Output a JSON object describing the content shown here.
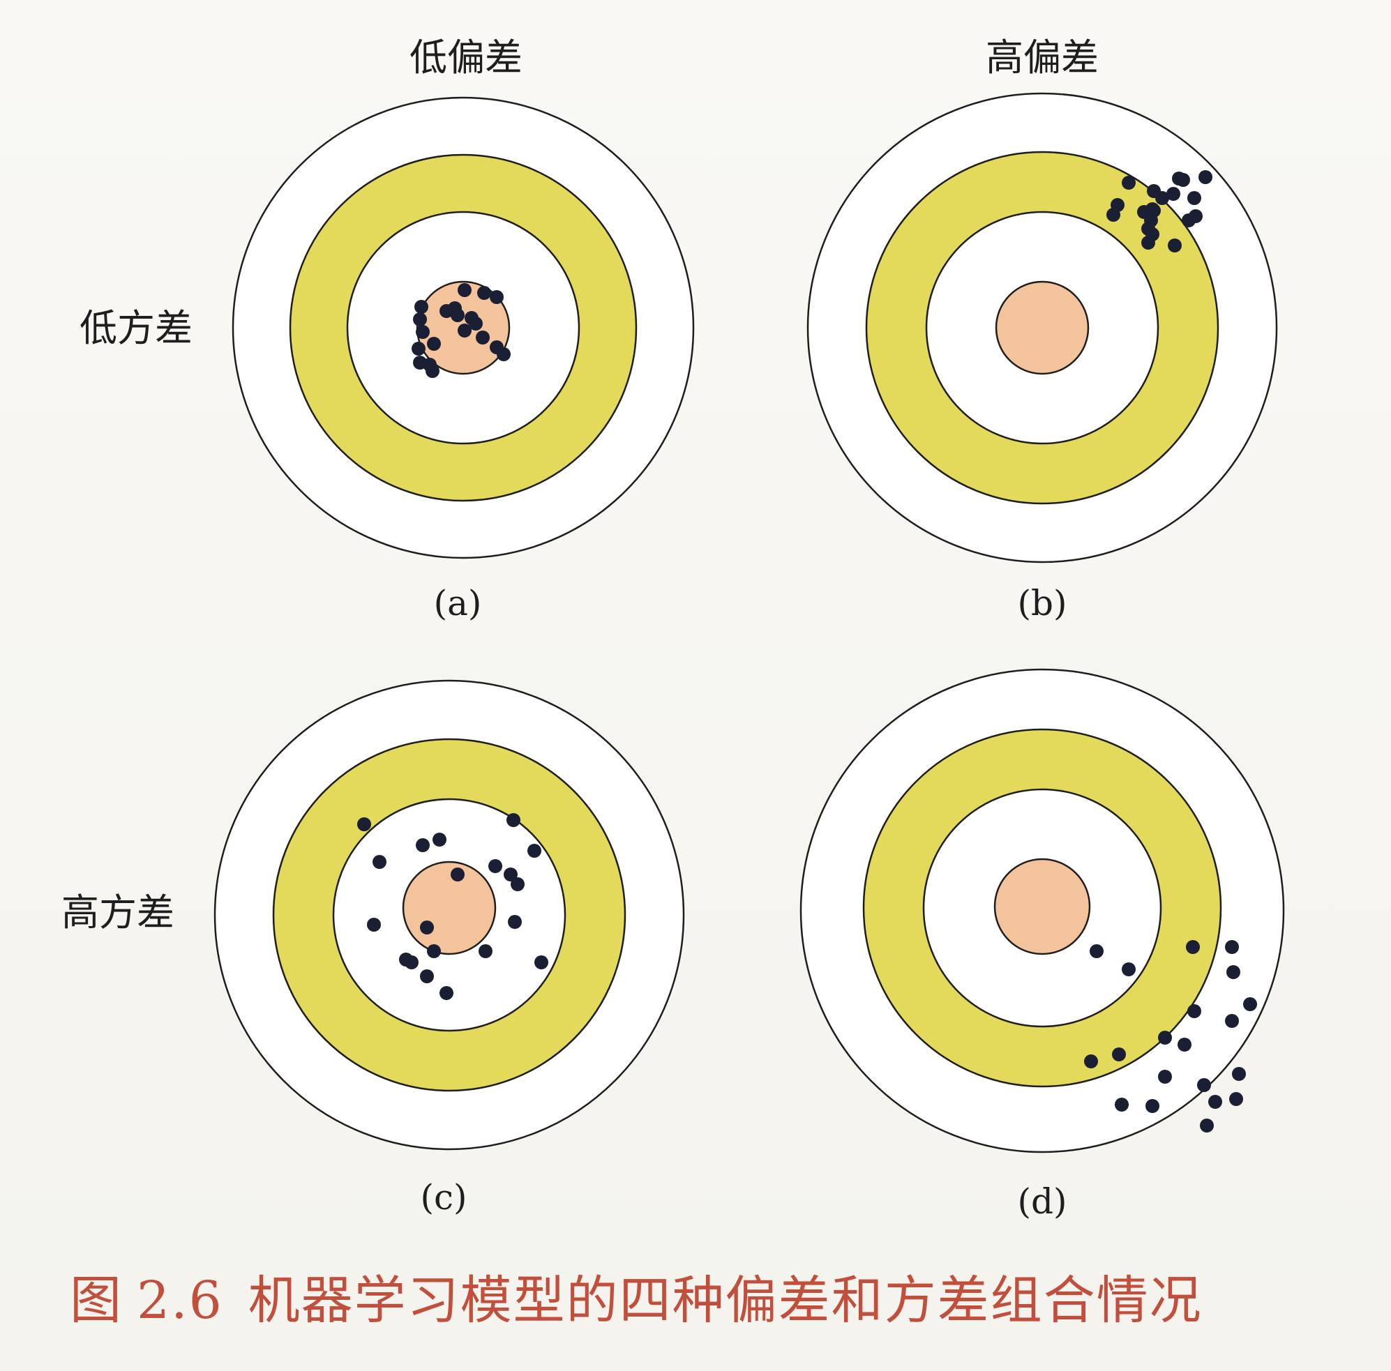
{
  "columns": {
    "low_bias": "低偏差",
    "high_bias": "高偏差"
  },
  "rows": {
    "low_variance": "低方差",
    "high_variance": "高方差"
  },
  "panels": [
    {
      "id": "a",
      "label": "(a)"
    },
    {
      "id": "b",
      "label": "(b)"
    },
    {
      "id": "c",
      "label": "(c)"
    },
    {
      "id": "d",
      "label": "(d)"
    }
  ],
  "caption": {
    "prefix": "图",
    "number": "2.6",
    "text": "机器学习模型的四种偏差和方差组合情况"
  },
  "colors": {
    "ring": "#e3da5c",
    "bullseye": "#f3c39b",
    "dot": "#1b1f33",
    "caption": "#c14f3c"
  }
}
